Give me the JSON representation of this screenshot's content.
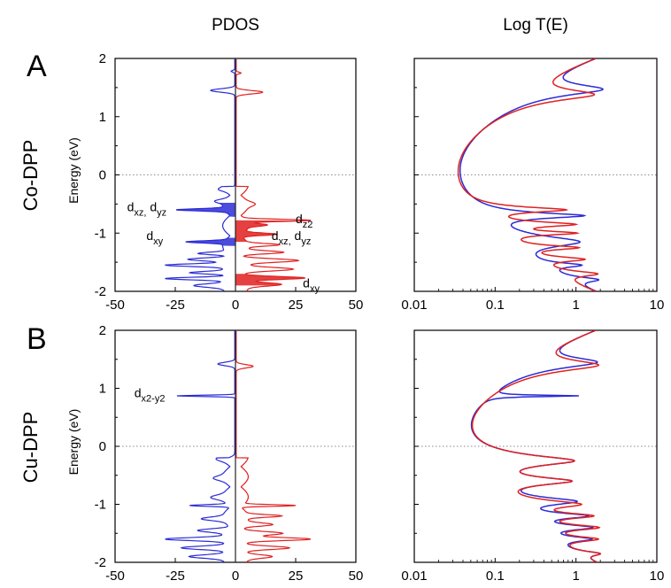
{
  "headers": {
    "pdos": "PDOS",
    "trans": "Log T(E)"
  },
  "rows": [
    {
      "letter": "A",
      "molecule": "Co-DPP"
    },
    {
      "letter": "B",
      "molecule": "Cu-DPP"
    }
  ],
  "colors": {
    "up": "#2b2bd6",
    "down": "#e02020",
    "frame": "#000000"
  },
  "chart_data": [
    {
      "id": "co-pdos",
      "type": "line",
      "panel": "PDOS",
      "row": "A",
      "ylabel": "Energy (eV)",
      "xlim": [
        -50,
        50
      ],
      "ylim": [
        -2,
        2
      ],
      "xticks": [
        "-50",
        "-25",
        "0",
        "25",
        "50"
      ],
      "yticks": [
        "2",
        "1",
        "0",
        "-1",
        "-2"
      ],
      "fermi_line": 0,
      "annotations": [
        {
          "text": "d",
          "sub": "xz,",
          "text2": " d",
          "sub2": "yz",
          "x": -45,
          "y": -0.62,
          "anchor": "start"
        },
        {
          "text": "d",
          "sub": "xy",
          "text2": "",
          "sub2": "",
          "x": -37,
          "y": -1.12,
          "anchor": "start"
        },
        {
          "text": "d",
          "sub": "z2",
          "text2": "",
          "sub2": "",
          "x": 25,
          "y": -0.83,
          "anchor": "start"
        },
        {
          "text": "d",
          "sub": "xz,",
          "text2": " d",
          "sub2": "yz",
          "x": 15,
          "y": -1.12,
          "anchor": "start"
        },
        {
          "text": "d",
          "sub": "xy",
          "text2": "",
          "sub2": "",
          "x": 28,
          "y": -1.93,
          "anchor": "start"
        }
      ],
      "series": [
        {
          "spin": "up",
          "peaks": [
            {
              "e": 1.78,
              "w": 0.02,
              "a": 1.5
            },
            {
              "e": 1.45,
              "w": 0.04,
              "a": 10
            },
            {
              "e": -0.25,
              "w": 0.04,
              "a": 2.5
            },
            {
              "e": -0.45,
              "w": 0.04,
              "a": 4
            },
            {
              "e": -0.6,
              "w": 0.025,
              "a": 20
            },
            {
              "e": -1.15,
              "w": 0.025,
              "a": 16
            },
            {
              "e": -1.35,
              "w": 0.03,
              "a": 12
            },
            {
              "e": -1.45,
              "w": 0.035,
              "a": 16
            },
            {
              "e": -1.55,
              "w": 0.03,
              "a": 24
            },
            {
              "e": -1.68,
              "w": 0.03,
              "a": 15
            },
            {
              "e": -1.78,
              "w": 0.03,
              "a": 26
            },
            {
              "e": -1.9,
              "w": 0.04,
              "a": 12
            }
          ],
          "fill": [
            {
              "e1": -0.72,
              "e2": -0.48
            },
            {
              "e1": -1.22,
              "e2": -1.08
            }
          ]
        },
        {
          "spin": "down",
          "peaks": [
            {
              "e": 1.75,
              "w": 0.02,
              "a": 2
            },
            {
              "e": 1.42,
              "w": 0.04,
              "a": 11
            },
            {
              "e": -0.5,
              "w": 0.05,
              "a": 3
            },
            {
              "e": -0.78,
              "w": 0.025,
              "a": 27
            },
            {
              "e": -0.86,
              "w": 0.03,
              "a": 8
            },
            {
              "e": -1.02,
              "w": 0.03,
              "a": 14
            },
            {
              "e": -1.2,
              "w": 0.03,
              "a": 13
            },
            {
              "e": -1.33,
              "w": 0.035,
              "a": 16
            },
            {
              "e": -1.47,
              "w": 0.04,
              "a": 22
            },
            {
              "e": -1.62,
              "w": 0.04,
              "a": 19
            },
            {
              "e": -1.77,
              "w": 0.035,
              "a": 26
            },
            {
              "e": -1.88,
              "w": 0.04,
              "a": 14
            }
          ],
          "fill": [
            {
              "e1": -1.15,
              "e2": -0.78
            },
            {
              "e1": -1.9,
              "e2": -1.7
            }
          ]
        }
      ]
    },
    {
      "id": "co-trans",
      "type": "line",
      "panel": "Log T(E)",
      "row": "A",
      "xscale": "log",
      "xlim": [
        0.01,
        10
      ],
      "ylim": [
        -2,
        2
      ],
      "xticks": [
        "0.01",
        "0.1",
        "1",
        "10"
      ],
      "fermi_line": 0,
      "series": [
        {
          "spin": "up",
          "base": 0.026,
          "resonances": [
            {
              "e": 1.47,
              "w": 0.07,
              "a": 1.9
            },
            {
              "e": -0.7,
              "w": 0.03,
              "a": 1.2
            },
            {
              "e": -1.15,
              "w": 0.07,
              "a": 1.0
            },
            {
              "e": -1.55,
              "w": 0.035,
              "a": 0.8
            },
            {
              "e": -1.8,
              "w": 0.04,
              "a": 1.1
            }
          ]
        },
        {
          "spin": "down",
          "base": 0.026,
          "resonances": [
            {
              "e": 1.38,
              "w": 0.07,
              "a": 1.5
            },
            {
              "e": -0.6,
              "w": 0.03,
              "a": 0.7
            },
            {
              "e": -0.85,
              "w": 0.03,
              "a": 0.9
            },
            {
              "e": -1.0,
              "w": 0.025,
              "a": 0.9
            },
            {
              "e": -1.25,
              "w": 0.03,
              "a": 0.9
            },
            {
              "e": -1.45,
              "w": 0.035,
              "a": 1.0
            },
            {
              "e": -1.7,
              "w": 0.04,
              "a": 1.3
            }
          ]
        }
      ]
    },
    {
      "id": "cu-pdos",
      "type": "line",
      "panel": "PDOS",
      "row": "B",
      "ylabel": "Energy (eV)",
      "xlim": [
        -50,
        50
      ],
      "ylim": [
        -2,
        2
      ],
      "xticks": [
        "-50",
        "-25",
        "0",
        "25",
        "50"
      ],
      "yticks": [
        "2",
        "1",
        "0",
        "-1",
        "-2"
      ],
      "fermi_line": 0,
      "annotations": [
        {
          "text": "d",
          "sub": "x2-y2",
          "text2": "",
          "sub2": "",
          "x": -42,
          "y": 0.85,
          "anchor": "start"
        }
      ],
      "series": [
        {
          "spin": "up",
          "peaks": [
            {
              "e": 1.42,
              "w": 0.04,
              "a": 7
            },
            {
              "e": 0.87,
              "w": 0.015,
              "a": 24
            },
            {
              "e": -0.22,
              "w": 0.05,
              "a": 3
            },
            {
              "e": -0.55,
              "w": 0.05,
              "a": 4
            },
            {
              "e": -0.88,
              "w": 0.05,
              "a": 5
            },
            {
              "e": -1.02,
              "w": 0.02,
              "a": 16
            },
            {
              "e": -1.25,
              "w": 0.04,
              "a": 9
            },
            {
              "e": -1.45,
              "w": 0.04,
              "a": 12
            },
            {
              "e": -1.6,
              "w": 0.035,
              "a": 24
            },
            {
              "e": -1.75,
              "w": 0.04,
              "a": 20
            },
            {
              "e": -1.9,
              "w": 0.04,
              "a": 14
            }
          ],
          "fill": []
        },
        {
          "spin": "down",
          "peaks": [
            {
              "e": 1.38,
              "w": 0.04,
              "a": 7
            },
            {
              "e": -1.02,
              "w": 0.02,
              "a": 22
            },
            {
              "e": -1.2,
              "w": 0.03,
              "a": 14
            },
            {
              "e": -1.35,
              "w": 0.04,
              "a": 12
            },
            {
              "e": -1.5,
              "w": 0.04,
              "a": 15
            },
            {
              "e": -1.6,
              "w": 0.035,
              "a": 26
            },
            {
              "e": -1.75,
              "w": 0.04,
              "a": 20
            },
            {
              "e": -1.9,
              "w": 0.04,
              "a": 10
            }
          ],
          "fill": []
        }
      ]
    },
    {
      "id": "cu-trans",
      "type": "line",
      "panel": "Log T(E)",
      "row": "B",
      "xscale": "log",
      "xlim": [
        0.01,
        10
      ],
      "ylim": [
        -2,
        2
      ],
      "xticks": [
        "0.01",
        "0.1",
        "1",
        "10"
      ],
      "fermi_line": 0,
      "series": [
        {
          "spin": "up",
          "base": 0.026,
          "resonances": [
            {
              "e": 1.45,
              "w": 0.07,
              "a": 1.6
            },
            {
              "e": 0.87,
              "w": 0.008,
              "a": 1.0
            },
            {
              "e": -0.25,
              "w": 0.06,
              "a": 0.9
            },
            {
              "e": -0.6,
              "w": 0.05,
              "a": 0.8
            },
            {
              "e": -0.95,
              "w": 0.05,
              "a": 0.9
            },
            {
              "e": -1.2,
              "w": 0.04,
              "a": 1.2
            },
            {
              "e": -1.4,
              "w": 0.04,
              "a": 1.3
            },
            {
              "e": -1.6,
              "w": 0.04,
              "a": 1.1
            },
            {
              "e": -1.85,
              "w": 0.04,
              "a": 1.0
            }
          ]
        },
        {
          "spin": "down",
          "base": 0.026,
          "resonances": [
            {
              "e": 1.4,
              "w": 0.07,
              "a": 1.7
            },
            {
              "e": -0.25,
              "w": 0.06,
              "a": 0.9
            },
            {
              "e": -0.6,
              "w": 0.05,
              "a": 0.8
            },
            {
              "e": -1.0,
              "w": 0.05,
              "a": 1.0
            },
            {
              "e": -1.2,
              "w": 0.04,
              "a": 1.4
            },
            {
              "e": -1.4,
              "w": 0.04,
              "a": 1.6
            },
            {
              "e": -1.6,
              "w": 0.04,
              "a": 1.4
            },
            {
              "e": -1.85,
              "w": 0.04,
              "a": 1.0
            }
          ]
        }
      ]
    }
  ]
}
